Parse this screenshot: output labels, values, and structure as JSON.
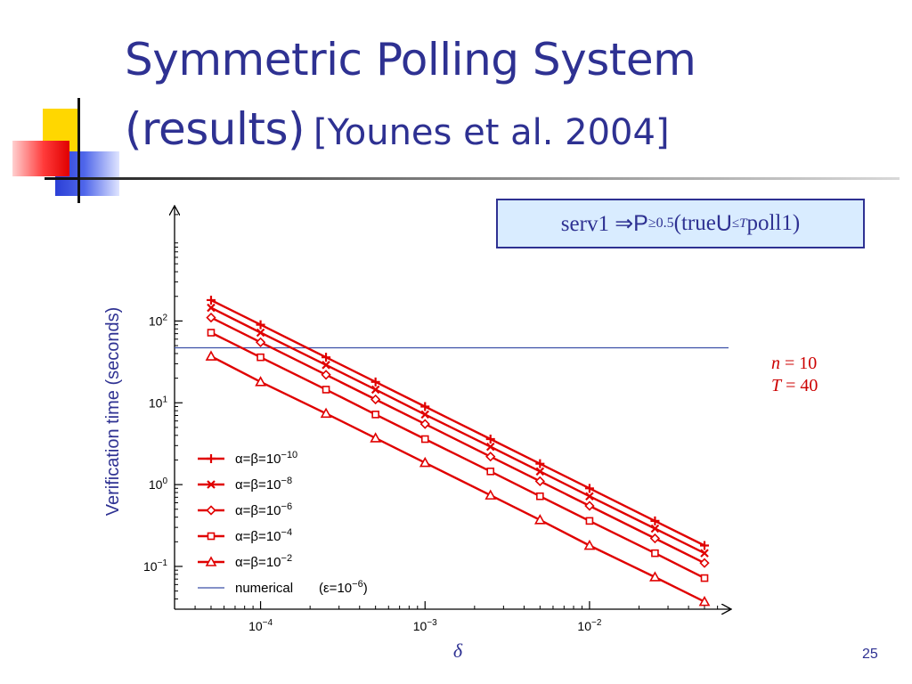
{
  "slide": {
    "title_line1": "Symmetric Polling System",
    "title_line2": "(results)",
    "title_citation": "[Younes et al. 2004]",
    "page_number": "25"
  },
  "formula": {
    "prefix": "serv1 ⇒ ",
    "P": "P",
    "sub": "≥0.5",
    "mid": "(true ",
    "U": "U",
    "sup": "≤T",
    "suffix": " poll1)"
  },
  "params": {
    "n_name": "n",
    "n_rest": " = 10",
    "T_name": "T",
    "T_rest": " = 40"
  },
  "colors": {
    "title": "#2e3192",
    "series": "#e00000",
    "numerical": "#3b4fa8",
    "box_fill": "#d9ecff"
  },
  "chart_data": {
    "type": "line",
    "xscale": "log",
    "yscale": "log",
    "xlabel": "δ",
    "ylabel": "Verification time (seconds)",
    "xlim": [
      3e-05,
      0.07
    ],
    "ylim": [
      0.03,
      2500
    ],
    "x_ticks": [
      {
        "value": 0.0001,
        "base": "10",
        "exp": "−4"
      },
      {
        "value": 0.001,
        "base": "10",
        "exp": "−3"
      },
      {
        "value": 0.01,
        "base": "10",
        "exp": "−2"
      }
    ],
    "y_ticks": [
      {
        "value": 0.1,
        "base": "10",
        "exp": "−1"
      },
      {
        "value": 1,
        "base": "10",
        "exp": "0"
      },
      {
        "value": 10,
        "base": "10",
        "exp": "1"
      },
      {
        "value": 100,
        "base": "10",
        "exp": "2"
      }
    ],
    "x": [
      5e-05,
      0.0001,
      0.00025,
      0.0005,
      0.001,
      0.0025,
      0.005,
      0.01,
      0.025,
      0.05
    ],
    "series": [
      {
        "name": "α=β=10",
        "name_exp": "−10",
        "marker": "plus",
        "values": [
          180,
          90,
          36,
          18,
          9,
          3.6,
          1.8,
          0.9,
          0.36,
          0.18
        ]
      },
      {
        "name": "α=β=10",
        "name_exp": "−8",
        "marker": "cross",
        "values": [
          145,
          72,
          29,
          14.5,
          7.2,
          2.9,
          1.45,
          0.72,
          0.29,
          0.145
        ]
      },
      {
        "name": "α=β=10",
        "name_exp": "−6",
        "marker": "diamond",
        "values": [
          110,
          55,
          22,
          11,
          5.5,
          2.2,
          1.1,
          0.55,
          0.22,
          0.11
        ]
      },
      {
        "name": "α=β=10",
        "name_exp": "−4",
        "marker": "square",
        "values": [
          72,
          36,
          14.5,
          7.2,
          3.6,
          1.45,
          0.72,
          0.36,
          0.145,
          0.072
        ]
      },
      {
        "name": "α=β=10",
        "name_exp": "−2",
        "marker": "triangle",
        "values": [
          37,
          18,
          7.4,
          3.7,
          1.85,
          0.74,
          0.37,
          0.18,
          0.074,
          0.037
        ]
      }
    ],
    "reference_line": {
      "name": "numerical",
      "note_prefix": "(ε=10",
      "note_exp": "−6",
      "note_suffix": ")",
      "y": 47
    },
    "legend_position": "lower-left",
    "grid": false
  }
}
